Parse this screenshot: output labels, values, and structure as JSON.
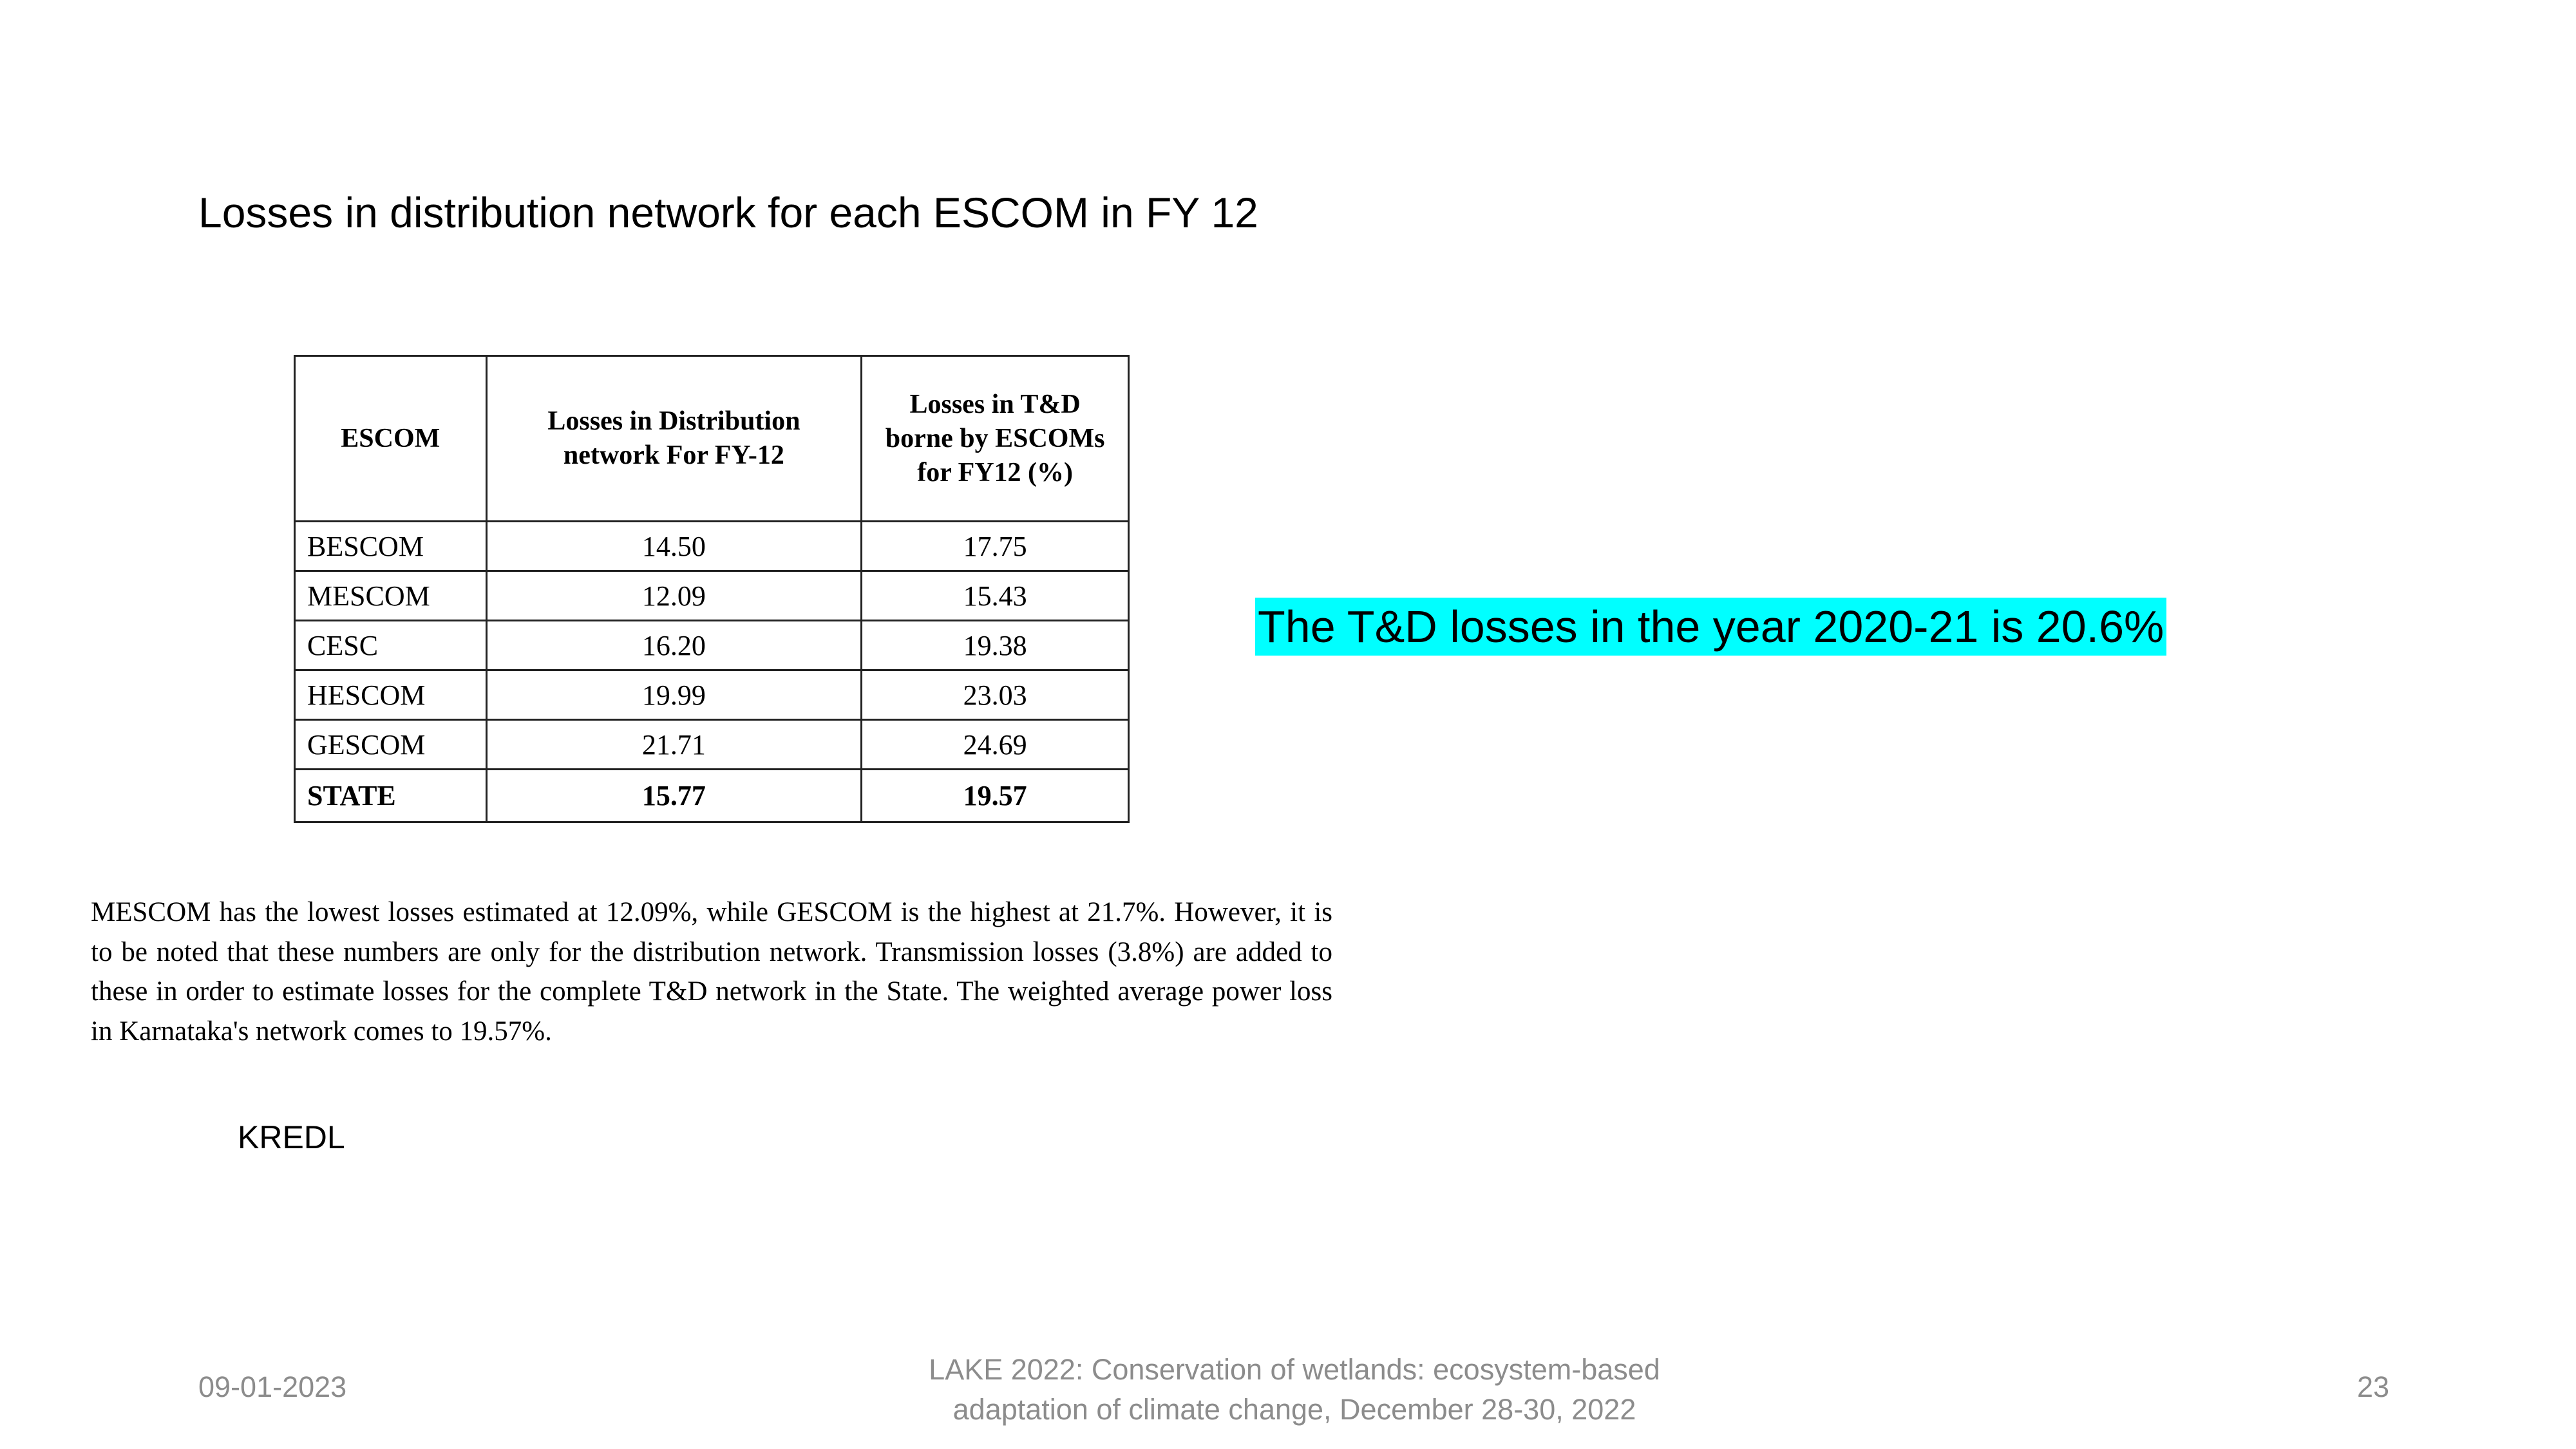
{
  "title": "Losses in distribution network for each ESCOM in FY 12",
  "table": {
    "headers": [
      "ESCOM",
      "Losses in Distribution network For FY-12",
      "Losses in T&D borne by ESCOMs for FY12 (%)"
    ],
    "rows": [
      [
        "BESCOM",
        "14.50",
        "17.75"
      ],
      [
        "MESCOM",
        "12.09",
        "15.43"
      ],
      [
        "CESC",
        "16.20",
        "19.38"
      ],
      [
        "HESCOM",
        "19.99",
        "23.03"
      ],
      [
        "GESCOM",
        "21.71",
        "24.69"
      ],
      [
        "STATE",
        "15.77",
        "19.57"
      ]
    ]
  },
  "highlight": {
    "text": "The T&D losses in the year 2020-21 is 20.6%",
    "color": "#00ffff"
  },
  "paragraph": "MESCOM has the lowest losses estimated at 12.09%, while GESCOM is the highest at 21.7%. However, it is to be noted that these numbers are only for the distribution network. Transmission losses (3.8%) are added to these in order to estimate losses for the complete T&D network in the State. The weighted average power loss in Karnataka's network comes to 19.57%.",
  "source": "KREDL",
  "footer": {
    "date": "09-01-2023",
    "conference": "LAKE 2022: Conservation of wetlands: ecosystem-based adaptation of climate change, December 28-30, 2022",
    "page": "23"
  }
}
